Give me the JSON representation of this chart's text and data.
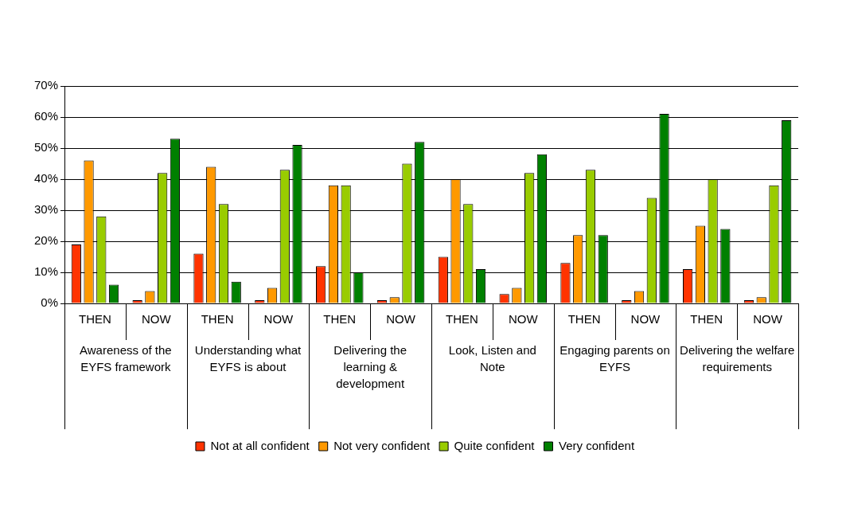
{
  "chart_data": {
    "type": "bar",
    "categories": [
      "THEN",
      "NOW",
      "THEN",
      "NOW",
      "THEN",
      "NOW",
      "THEN",
      "NOW",
      "THEN",
      "NOW",
      "THEN",
      "NOW"
    ],
    "annotations": [
      "Awareness of the EYFS framework",
      "Understanding what EYFS is about",
      "Delivering the learning & development",
      "Look, Listen and Note",
      "Engaging parents on EYFS",
      "Delivering the welfare requirements"
    ],
    "series": [
      {
        "name": "Not at all confident",
        "color": "#ff3300",
        "values": [
          19,
          1,
          16,
          1,
          12,
          1,
          15,
          3,
          13,
          1,
          11,
          1
        ]
      },
      {
        "name": "Not very confident",
        "color": "#ff9900",
        "values": [
          46,
          4,
          44,
          5,
          38,
          2,
          40,
          5,
          22,
          4,
          25,
          2
        ]
      },
      {
        "name": "Quite confident",
        "color": "#99cc00",
        "values": [
          28,
          42,
          32,
          43,
          38,
          45,
          32,
          42,
          43,
          34,
          40,
          38
        ]
      },
      {
        "name": "Very confident",
        "color": "#008000",
        "values": [
          6,
          53,
          7,
          51,
          10,
          52,
          11,
          48,
          22,
          61,
          24,
          59
        ]
      }
    ],
    "ylim": [
      0,
      70
    ],
    "yticks": [
      {
        "value": 0,
        "label": "0%"
      },
      {
        "value": 10,
        "label": "10%"
      },
      {
        "value": 20,
        "label": "20%"
      },
      {
        "value": 30,
        "label": "30%"
      },
      {
        "value": 40,
        "label": "40%"
      },
      {
        "value": 50,
        "label": "50%"
      },
      {
        "value": 60,
        "label": "60%"
      },
      {
        "value": 70,
        "label": "70%"
      }
    ],
    "grid": "y",
    "legend": "bottom"
  }
}
